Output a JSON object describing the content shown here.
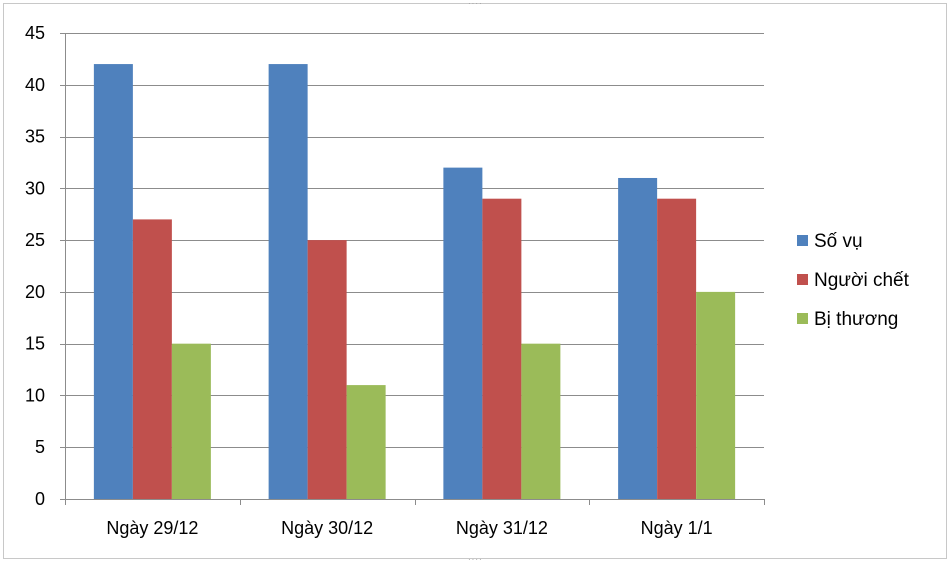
{
  "chart_data": {
    "type": "bar",
    "title": "",
    "xlabel": "",
    "ylabel": "",
    "categories": [
      "Ngày 29/12",
      "Ngày 30/12",
      "Ngày 31/12",
      "Ngày 1/1"
    ],
    "series": [
      {
        "name": "Số vụ",
        "color": "#4f81bd",
        "values": [
          42,
          42,
          32,
          31
        ]
      },
      {
        "name": "Người chết",
        "color": "#c0504d",
        "values": [
          27,
          25,
          29,
          29
        ]
      },
      {
        "name": "Bị thương",
        "color": "#9bbb59",
        "values": [
          15,
          11,
          15,
          20
        ]
      }
    ],
    "ylim": [
      0,
      45
    ],
    "yticks": [
      "0",
      "5",
      "10",
      "15",
      "20",
      "25",
      "30",
      "35",
      "40",
      "45"
    ],
    "grid": true,
    "legend": "right"
  }
}
